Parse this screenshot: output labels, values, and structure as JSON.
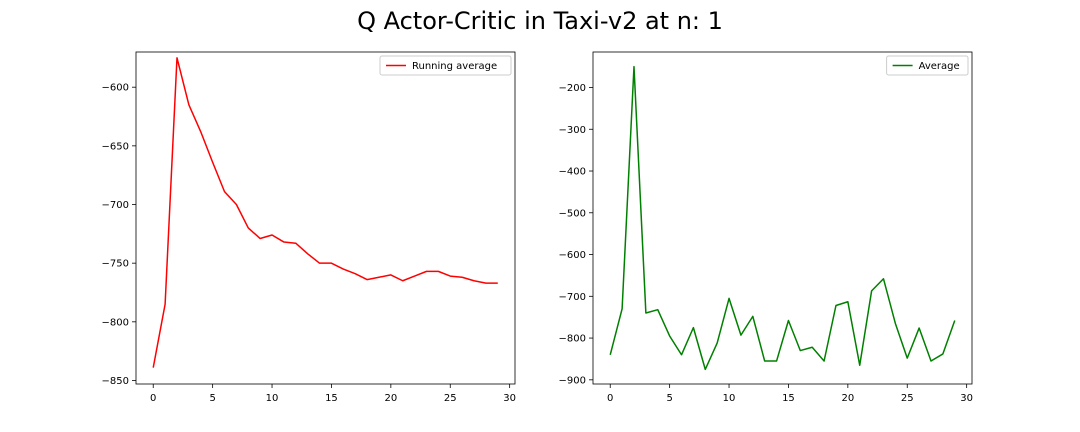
{
  "figure": {
    "title": "Q Actor-Critic in Taxi-v2 at n: 1"
  },
  "chart_data": [
    {
      "type": "line",
      "title": "",
      "xlabel": "",
      "ylabel": "",
      "xlim": [
        -1.45,
        30.45
      ],
      "ylim": [
        -853,
        -570
      ],
      "xticks": [
        0,
        5,
        10,
        15,
        20,
        25,
        30
      ],
      "yticks": [
        -850,
        -800,
        -750,
        -700,
        -650,
        -600
      ],
      "grid": false,
      "legend_position": "top-right",
      "series": [
        {
          "name": "Running average",
          "color": "#ff0000",
          "x": [
            0,
            1,
            2,
            3,
            4,
            5,
            6,
            7,
            8,
            9,
            10,
            11,
            12,
            13,
            14,
            15,
            16,
            17,
            18,
            19,
            20,
            21,
            22,
            23,
            24,
            25,
            26,
            27,
            28,
            29
          ],
          "y": [
            -839,
            -785,
            -575,
            -615,
            -638,
            -664,
            -689,
            -700,
            -720,
            -729,
            -726,
            -732,
            -733,
            -742,
            -750,
            -750,
            -755,
            -759,
            -764,
            -762,
            -760,
            -765,
            -761,
            -757,
            -757,
            -761,
            -762,
            -765,
            -767,
            -767
          ]
        }
      ]
    },
    {
      "type": "line",
      "title": "",
      "xlabel": "",
      "ylabel": "",
      "xlim": [
        -1.45,
        30.45
      ],
      "ylim": [
        -910,
        -115
      ],
      "xticks": [
        0,
        5,
        10,
        15,
        20,
        25,
        30
      ],
      "yticks": [
        -900,
        -800,
        -700,
        -600,
        -500,
        -400,
        -300,
        -200
      ],
      "grid": false,
      "legend_position": "top-right",
      "series": [
        {
          "name": "Average",
          "color": "#008000",
          "x": [
            0,
            1,
            2,
            3,
            4,
            5,
            6,
            7,
            8,
            9,
            10,
            11,
            12,
            13,
            14,
            15,
            16,
            17,
            18,
            19,
            20,
            21,
            22,
            23,
            24,
            25,
            26,
            27,
            28,
            29
          ],
          "y": [
            -840,
            -730,
            -150,
            -740,
            -732,
            -795,
            -840,
            -775,
            -875,
            -812,
            -705,
            -793,
            -748,
            -855,
            -855,
            -758,
            -830,
            -822,
            -855,
            -722,
            -713,
            -865,
            -687,
            -658,
            -765,
            -848,
            -776,
            -855,
            -838,
            -758
          ]
        }
      ]
    }
  ]
}
